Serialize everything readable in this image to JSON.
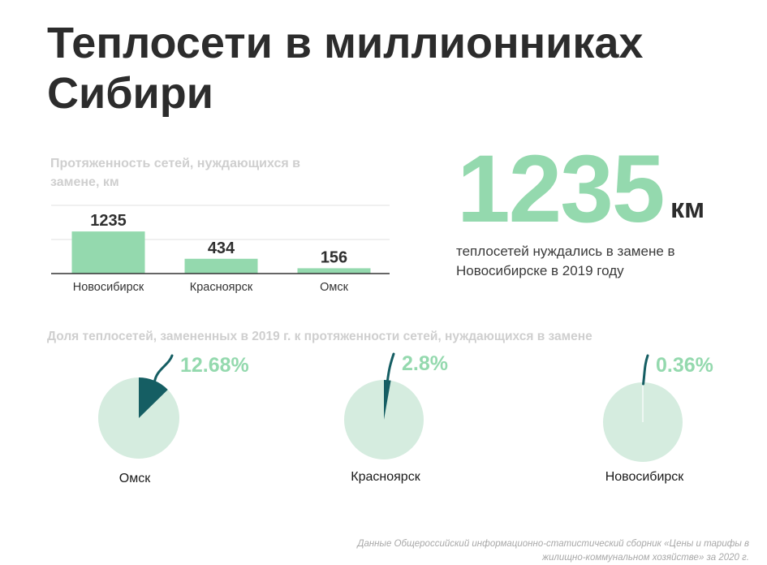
{
  "title": "Теплосети в миллионниках Сибири",
  "bar_section_label": "Протяженность сетей, нуждающихся в замене, км",
  "highlight": {
    "value": "1235",
    "unit": "км",
    "caption": "теплосетей нуждались в замене в Новосибирске в 2019 году"
  },
  "pie_section_title": "Доля теплосетей, замененных в 2019 г. к протяженности сетей, нуждающихся в замене",
  "source": "Данные Общероссийский информационно-статистический сборник «Цены и тарифы в жилищно-коммунальном хозяйстве» за 2020 г.",
  "colors": {
    "bar": "#94d9ae",
    "pie_background": "#d5ecdf",
    "pie_slice": "#155e63",
    "percent_label": "#94d9ae",
    "gridline": "#e2e2e2",
    "axis": "#333333"
  },
  "chart_data": [
    {
      "type": "bar",
      "title": "Протяженность сетей, нуждающихся в замене, км",
      "categories": [
        "Новосибирск",
        "Красноярск",
        "Омск"
      ],
      "values": [
        1235,
        434,
        156
      ],
      "data_labels": [
        "1235",
        "434",
        "156"
      ],
      "ylim": [
        0,
        2000
      ],
      "grid": true,
      "legend": "none"
    },
    {
      "type": "pie",
      "title": "Доля теплосетей, замененных в 2019 г. к протяженности сетей, нуждающихся в замене",
      "items": [
        {
          "city": "Омск",
          "percent": 12.68,
          "label": "12.68%"
        },
        {
          "city": "Красноярск",
          "percent": 2.8,
          "label": "2.8%"
        },
        {
          "city": "Новосибирск",
          "percent": 0.36,
          "label": "0.36%"
        }
      ],
      "legend": "none"
    }
  ]
}
